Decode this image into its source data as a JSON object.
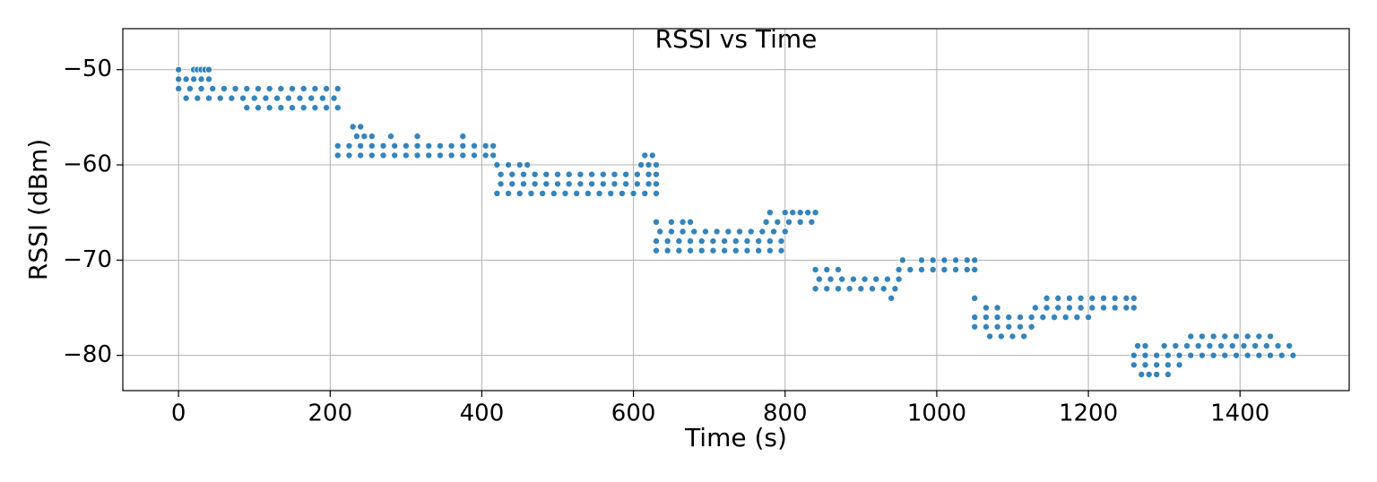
{
  "chart_data": {
    "type": "scatter",
    "title": "RSSI vs Time",
    "x_label": "Time (s)",
    "y_label": "RSSI (dBm)",
    "grid": true,
    "xlim": [
      -73.5,
      1544
    ],
    "ylim": [
      -83.7,
      -45.7
    ],
    "xticks": [
      0,
      200,
      400,
      600,
      800,
      1000,
      1200,
      1400
    ],
    "yticks": [
      {
        "value": -80,
        "label": "−80"
      },
      {
        "value": -70,
        "label": "−70"
      },
      {
        "value": -60,
        "label": "−60"
      },
      {
        "value": -50,
        "label": "−50"
      }
    ],
    "series": [
      {
        "color": "#1f77b4",
        "x": [
          0,
          20,
          25,
          30,
          35,
          40
        ],
        "values": [
          -50,
          -50,
          -50,
          -50,
          -50,
          -50
        ]
      },
      {
        "color": "#1f77b4",
        "x": [
          0,
          10,
          20,
          30,
          40
        ],
        "values": [
          -51,
          -51,
          -51,
          -51,
          -51
        ]
      },
      {
        "color": "#1f77b4",
        "x": [
          0,
          15,
          30,
          45,
          60,
          75,
          90,
          105,
          120,
          135,
          150,
          165,
          180,
          195,
          210
        ],
        "values": [
          -52,
          -52,
          -52,
          -52,
          -52,
          -52,
          -52,
          -52,
          -52,
          -52,
          -52,
          -52,
          -52,
          -52,
          -52
        ]
      },
      {
        "color": "#1f77b4",
        "x": [
          10,
          25,
          40,
          55,
          70,
          85,
          100,
          115,
          130,
          145,
          160,
          175,
          190,
          205
        ],
        "values": [
          -53,
          -53,
          -53,
          -53,
          -53,
          -53,
          -53,
          -53,
          -53,
          -53,
          -53,
          -53,
          -53,
          -53
        ]
      },
      {
        "color": "#1f77b4",
        "x": [
          90,
          105,
          120,
          135,
          150,
          165,
          180,
          195,
          210
        ],
        "values": [
          -54,
          -54,
          -54,
          -54,
          -54,
          -54,
          -54,
          -54,
          -54
        ]
      },
      {
        "color": "#1f77b4",
        "x": [
          230,
          240
        ],
        "values": [
          -56,
          -56
        ]
      },
      {
        "color": "#1f77b4",
        "x": [
          235,
          245,
          255,
          280,
          315,
          375
        ],
        "values": [
          -57,
          -57,
          -57,
          -57,
          -57,
          -57
        ]
      },
      {
        "color": "#1f77b4",
        "x": [
          210,
          225,
          240,
          255,
          270,
          285,
          300,
          315,
          330,
          345,
          360,
          375,
          390,
          405,
          415
        ],
        "values": [
          -58,
          -58,
          -58,
          -58,
          -58,
          -58,
          -58,
          -58,
          -58,
          -58,
          -58,
          -58,
          -58,
          -58,
          -58
        ]
      },
      {
        "color": "#1f77b4",
        "x": [
          210,
          225,
          240,
          255,
          270,
          285,
          300,
          315,
          330,
          345,
          360,
          375,
          390,
          405,
          415,
          615,
          625
        ],
        "values": [
          -59,
          -59,
          -59,
          -59,
          -59,
          -59,
          -59,
          -59,
          -59,
          -59,
          -59,
          -59,
          -59,
          -59,
          -59,
          -59,
          -59
        ]
      },
      {
        "color": "#1f77b4",
        "x": [
          420,
          435,
          450,
          460,
          610,
          620,
          630
        ],
        "values": [
          -60,
          -60,
          -60,
          -60,
          -60,
          -60,
          -60
        ]
      },
      {
        "color": "#1f77b4",
        "x": [
          425,
          440,
          455,
          470,
          485,
          500,
          515,
          530,
          545,
          560,
          575,
          590,
          605,
          620,
          630
        ],
        "values": [
          -61,
          -61,
          -61,
          -61,
          -61,
          -61,
          -61,
          -61,
          -61,
          -61,
          -61,
          -61,
          -61,
          -61,
          -61
        ]
      },
      {
        "color": "#1f77b4",
        "x": [
          425,
          440,
          455,
          470,
          485,
          500,
          515,
          530,
          545,
          560,
          575,
          590,
          605,
          620,
          630
        ],
        "values": [
          -62,
          -62,
          -62,
          -62,
          -62,
          -62,
          -62,
          -62,
          -62,
          -62,
          -62,
          -62,
          -62,
          -62,
          -62
        ]
      },
      {
        "color": "#1f77b4",
        "x": [
          420,
          435,
          450,
          465,
          480,
          495,
          510,
          525,
          540,
          555,
          570,
          585,
          600,
          615,
          630
        ],
        "values": [
          -63,
          -63,
          -63,
          -63,
          -63,
          -63,
          -63,
          -63,
          -63,
          -63,
          -63,
          -63,
          -63,
          -63,
          -63
        ]
      },
      {
        "color": "#1f77b4",
        "x": [
          780,
          800,
          810,
          820,
          830,
          840
        ],
        "values": [
          -65,
          -65,
          -65,
          -65,
          -65,
          -65
        ]
      },
      {
        "color": "#1f77b4",
        "x": [
          630,
          650,
          665,
          675,
          775,
          790,
          805,
          820,
          835
        ],
        "values": [
          -66,
          -66,
          -66,
          -66,
          -66,
          -66,
          -66,
          -66,
          -66
        ]
      },
      {
        "color": "#1f77b4",
        "x": [
          635,
          650,
          665,
          680,
          695,
          710,
          725,
          740,
          755,
          770,
          785,
          800
        ],
        "values": [
          -67,
          -67,
          -67,
          -67,
          -67,
          -67,
          -67,
          -67,
          -67,
          -67,
          -67,
          -67
        ]
      },
      {
        "color": "#1f77b4",
        "x": [
          630,
          645,
          660,
          675,
          690,
          705,
          720,
          735,
          750,
          765,
          780,
          795
        ],
        "values": [
          -68,
          -68,
          -68,
          -68,
          -68,
          -68,
          -68,
          -68,
          -68,
          -68,
          -68,
          -68
        ]
      },
      {
        "color": "#1f77b4",
        "x": [
          630,
          645,
          660,
          675,
          690,
          705,
          720,
          735,
          750,
          765,
          780,
          795
        ],
        "values": [
          -69,
          -69,
          -69,
          -69,
          -69,
          -69,
          -69,
          -69,
          -69,
          -69,
          -69,
          -69
        ]
      },
      {
        "color": "#1f77b4",
        "x": [
          955,
          980,
          995,
          1010,
          1025,
          1040,
          1050
        ],
        "values": [
          -70,
          -70,
          -70,
          -70,
          -70,
          -70,
          -70
        ]
      },
      {
        "color": "#1f77b4",
        "x": [
          840,
          855,
          870,
          950,
          965,
          980,
          995,
          1010,
          1025,
          1040,
          1050
        ],
        "values": [
          -71,
          -71,
          -71,
          -71,
          -71,
          -71,
          -71,
          -71,
          -71,
          -71,
          -71
        ]
      },
      {
        "color": "#1f77b4",
        "x": [
          845,
          860,
          875,
          890,
          905,
          920,
          935,
          950
        ],
        "values": [
          -72,
          -72,
          -72,
          -72,
          -72,
          -72,
          -72,
          -72
        ]
      },
      {
        "color": "#1f77b4",
        "x": [
          840,
          855,
          870,
          885,
          900,
          915,
          930,
          945
        ],
        "values": [
          -73,
          -73,
          -73,
          -73,
          -73,
          -73,
          -73,
          -73
        ]
      },
      {
        "color": "#1f77b4",
        "x": [
          940,
          1050,
          1145,
          1160,
          1175,
          1190,
          1205,
          1220,
          1235,
          1250,
          1260
        ],
        "values": [
          -74,
          -74,
          -74,
          -74,
          -74,
          -74,
          -74,
          -74,
          -74,
          -74,
          -74
        ]
      },
      {
        "color": "#1f77b4",
        "x": [
          1065,
          1080,
          1130,
          1145,
          1160,
          1175,
          1190,
          1205,
          1220,
          1235,
          1250,
          1260
        ],
        "values": [
          -75,
          -75,
          -75,
          -75,
          -75,
          -75,
          -75,
          -75,
          -75,
          -75,
          -75,
          -75
        ]
      },
      {
        "color": "#1f77b4",
        "x": [
          1050,
          1065,
          1080,
          1095,
          1110,
          1125,
          1140,
          1155,
          1170,
          1185,
          1200
        ],
        "values": [
          -76,
          -76,
          -76,
          -76,
          -76,
          -76,
          -76,
          -76,
          -76,
          -76,
          -76
        ]
      },
      {
        "color": "#1f77b4",
        "x": [
          1050,
          1065,
          1080,
          1095,
          1110,
          1125
        ],
        "values": [
          -77,
          -77,
          -77,
          -77,
          -77,
          -77
        ]
      },
      {
        "color": "#1f77b4",
        "x": [
          1070,
          1085,
          1100,
          1115,
          1335,
          1350,
          1365,
          1380,
          1395,
          1410,
          1425,
          1440
        ],
        "values": [
          -78,
          -78,
          -78,
          -78,
          -78,
          -78,
          -78,
          -78,
          -78,
          -78,
          -78,
          -78
        ]
      },
      {
        "color": "#1f77b4",
        "x": [
          1265,
          1275,
          1300,
          1315,
          1330,
          1345,
          1360,
          1375,
          1390,
          1405,
          1420,
          1435,
          1450,
          1465
        ],
        "values": [
          -79,
          -79,
          -79,
          -79,
          -79,
          -79,
          -79,
          -79,
          -79,
          -79,
          -79,
          -79,
          -79,
          -79
        ]
      },
      {
        "color": "#1f77b4",
        "x": [
          1260,
          1275,
          1290,
          1305,
          1320,
          1335,
          1350,
          1365,
          1380,
          1395,
          1410,
          1425,
          1440,
          1455,
          1470
        ],
        "values": [
          -80,
          -80,
          -80,
          -80,
          -80,
          -80,
          -80,
          -80,
          -80,
          -80,
          -80,
          -80,
          -80,
          -80,
          -80
        ]
      },
      {
        "color": "#1f77b4",
        "x": [
          1260,
          1275,
          1290,
          1305,
          1320
        ],
        "values": [
          -81,
          -81,
          -81,
          -81,
          -81
        ]
      },
      {
        "color": "#1f77b4",
        "x": [
          1270,
          1280,
          1290,
          1305
        ],
        "values": [
          -82,
          -82,
          -82,
          -82
        ]
      }
    ]
  }
}
